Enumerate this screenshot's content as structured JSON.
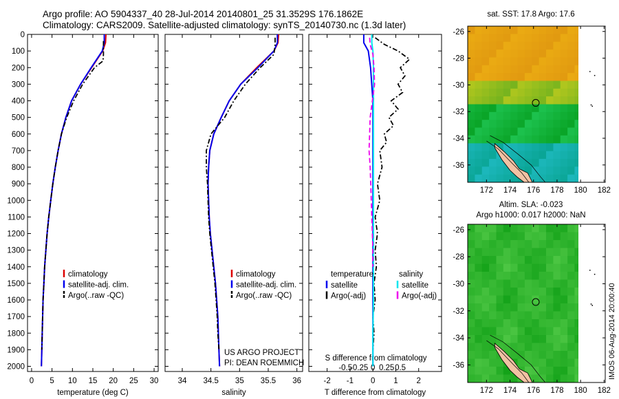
{
  "header": {
    "line1": "Argo profile: AO 5904337_40 28-Jul-2014 20140801_25 31.3529S 176.1862E",
    "line2": "Climatology: CARS2009. Satellite-adjusted climatology: synTS_20140730.nc (1.3d later)"
  },
  "colors": {
    "climatology": "#dd0000",
    "satellite": "#0000ee",
    "argo": "#000000",
    "salinity_satellite": "#00e5ee",
    "salinity_argo": "#ee00ee"
  },
  "credits": {
    "line1": "US ARGO PROJECT",
    "line2": "PI: DEAN ROEMMICH"
  },
  "side_stamp": "IMOS 06-Aug-2014 20:00:40",
  "chart_data": [
    {
      "type": "line",
      "xlabel": "temperature (deg C)",
      "ylabel": "",
      "xlim": [
        -1,
        31
      ],
      "xticks": [
        0,
        5,
        10,
        15,
        20,
        25,
        30
      ],
      "ylim": [
        2050,
        0
      ],
      "yticks": [
        0,
        100,
        200,
        300,
        400,
        500,
        600,
        700,
        800,
        900,
        1000,
        1100,
        1200,
        1300,
        1400,
        1500,
        1600,
        1700,
        1800,
        1900,
        2000
      ],
      "legend": [
        "climatology",
        "satellite-adj. clim.",
        "Argo(..raw -QC)"
      ],
      "series": [
        {
          "name": "climatology",
          "style": "solid",
          "color": "#dd0000",
          "x": [
            18.2,
            18.1,
            17.4,
            14.7,
            12.0,
            9.8,
            8.4,
            7.3,
            6.5,
            5.8,
            5.2,
            4.7,
            4.2,
            3.8,
            3.5,
            3.2,
            3.0,
            2.8,
            2.7,
            2.6,
            2.5,
            2.4
          ],
          "y": [
            0,
            50,
            100,
            200,
            300,
            400,
            500,
            600,
            700,
            800,
            900,
            1000,
            1100,
            1200,
            1300,
            1400,
            1500,
            1600,
            1700,
            1800,
            1900,
            2000
          ]
        },
        {
          "name": "satellite-adj. clim.",
          "style": "solid",
          "color": "#0000ee",
          "x": [
            17.8,
            17.8,
            17.3,
            14.6,
            12.0,
            9.8,
            8.4,
            7.3,
            6.5,
            5.8,
            5.2,
            4.7,
            4.2,
            3.8,
            3.5,
            3.2,
            3.0,
            2.8,
            2.7,
            2.6,
            2.5,
            2.4
          ],
          "y": [
            0,
            50,
            100,
            200,
            300,
            400,
            500,
            600,
            700,
            800,
            900,
            1000,
            1100,
            1200,
            1300,
            1400,
            1500,
            1600,
            1700,
            1800,
            1900,
            2000
          ]
        },
        {
          "name": "Argo(..raw -QC)",
          "style": "dashdot",
          "color": "#000000",
          "x": [
            17.6,
            17.6,
            17.6,
            17.5,
            15.4,
            12.5,
            10.3,
            8.6,
            7.3,
            6.5,
            5.8,
            5.2,
            4.7,
            4.2,
            3.8,
            3.5,
            3.2,
            3.0,
            2.8,
            2.7,
            2.6,
            2.5
          ],
          "y": [
            40,
            80,
            120,
            160,
            200,
            300,
            400,
            500,
            600,
            700,
            800,
            900,
            1000,
            1100,
            1200,
            1300,
            1400,
            1500,
            1600,
            1700,
            1800,
            1900
          ]
        }
      ]
    },
    {
      "type": "line",
      "xlabel": "salinity",
      "ylabel": "",
      "xlim": [
        33.7,
        36.1
      ],
      "xticks": [
        34,
        34.5,
        35,
        35.5,
        36
      ],
      "ylim": [
        2050,
        0
      ],
      "legend": [
        "climatology",
        "satellite-adj. clim.",
        "Argo(..raw -QC)"
      ],
      "series": [
        {
          "name": "climatology",
          "style": "solid",
          "color": "#dd0000",
          "x": [
            35.68,
            35.67,
            35.6,
            35.3,
            35.02,
            34.82,
            34.68,
            34.55,
            34.48,
            34.46,
            34.45,
            34.46,
            34.47,
            34.49,
            34.52,
            34.55,
            34.58,
            34.6,
            34.62,
            34.63,
            34.64,
            34.65
          ],
          "y": [
            0,
            50,
            100,
            200,
            300,
            400,
            500,
            600,
            700,
            800,
            900,
            1000,
            1100,
            1200,
            1300,
            1400,
            1500,
            1600,
            1700,
            1800,
            1900,
            2000
          ]
        },
        {
          "name": "satellite-adj. clim.",
          "style": "solid",
          "color": "#0000ee",
          "x": [
            35.66,
            35.66,
            35.6,
            35.32,
            35.02,
            34.82,
            34.68,
            34.55,
            34.48,
            34.46,
            34.45,
            34.46,
            34.47,
            34.49,
            34.52,
            34.55,
            34.58,
            34.6,
            34.62,
            34.63,
            34.64,
            34.65
          ],
          "y": [
            0,
            50,
            100,
            200,
            300,
            400,
            500,
            600,
            700,
            800,
            900,
            1000,
            1100,
            1200,
            1300,
            1400,
            1500,
            1600,
            1700,
            1800,
            1900,
            2000
          ]
        },
        {
          "name": "Argo(..raw -QC)",
          "style": "dashdot",
          "color": "#000000",
          "x": [
            35.62,
            35.62,
            35.6,
            35.36,
            35.1,
            34.9,
            34.74,
            34.5,
            34.42,
            34.42,
            34.44,
            34.45,
            34.46,
            34.48,
            34.51,
            34.54,
            34.57,
            34.59,
            34.61,
            34.62,
            34.64
          ],
          "y": [
            20,
            60,
            120,
            200,
            300,
            400,
            500,
            600,
            700,
            800,
            900,
            1000,
            1100,
            1200,
            1300,
            1400,
            1500,
            1600,
            1700,
            1800,
            1900
          ]
        }
      ]
    },
    {
      "type": "line",
      "xlabel": "T difference from climatology",
      "secondary_xlabel": "S difference from climatology",
      "ylabel": "",
      "xlim": [
        -2.8,
        3.0
      ],
      "xticks": [
        -2,
        -1,
        0,
        1,
        2
      ],
      "secondary_xticks": [
        -0.5,
        -0.25,
        0,
        0.25,
        0.5
      ],
      "ylim": [
        2050,
        0
      ],
      "legend_groups": [
        {
          "title": "temperature",
          "items": [
            "satellite",
            "Argo(-adj)"
          ]
        },
        {
          "title": "salinity",
          "items": [
            "satellite",
            "Argo(-adj)"
          ]
        }
      ],
      "series": [
        {
          "name": "satellite",
          "group": "temperature",
          "style": "solid",
          "color": "#0000ee",
          "x": [
            -0.4,
            -0.4,
            -0.2,
            -0.1,
            0,
            0,
            0,
            0,
            0,
            0,
            0,
            0,
            0
          ],
          "y": [
            0,
            50,
            100,
            200,
            400,
            600,
            800,
            1000,
            1200,
            1400,
            1600,
            1800,
            2000
          ]
        },
        {
          "name": "Argo(-adj)",
          "group": "temperature",
          "style": "dashdot",
          "color": "#000000",
          "x": [
            0.1,
            0.5,
            1.1,
            1.6,
            1.2,
            1.4,
            1.1,
            1.3,
            0.8,
            1.1,
            0.7,
            0.9,
            0.5,
            0.6,
            0.3,
            0.4,
            0.2,
            0.3,
            0.1,
            0.2,
            0.1,
            0.15,
            0.05,
            0.1,
            0.0,
            0.05,
            0.0
          ],
          "y": [
            20,
            60,
            100,
            150,
            200,
            250,
            300,
            350,
            400,
            450,
            500,
            550,
            600,
            650,
            700,
            800,
            900,
            1000,
            1100,
            1200,
            1300,
            1400,
            1500,
            1600,
            1700,
            1800,
            1900
          ]
        },
        {
          "name": "satellite",
          "group": "salinity",
          "style": "solid",
          "color": "#00e5ee",
          "x": [
            -0.02,
            -0.02,
            0.0,
            0.01,
            0.01,
            0.01,
            0.01,
            0.01,
            0.01,
            0.01,
            0.01,
            0.0,
            0.0
          ],
          "y": [
            0,
            50,
            100,
            200,
            400,
            600,
            800,
            1000,
            1200,
            1400,
            1600,
            1800,
            2000
          ]
        },
        {
          "name": "Argo(-adj)",
          "group": "salinity",
          "style": "dashed",
          "color": "#ee00ee",
          "x": [
            -0.06,
            -0.05,
            0.0,
            0.02,
            0.03,
            -0.01,
            -0.05,
            -0.06,
            -0.07,
            -0.05,
            -0.04,
            -0.03,
            -0.02,
            -0.01,
            0.0,
            0.0
          ],
          "y": [
            20,
            60,
            120,
            200,
            300,
            400,
            500,
            600,
            700,
            800,
            900,
            1000,
            1100,
            1200,
            1300,
            1400
          ]
        }
      ]
    },
    {
      "type": "heatmap",
      "title": "sat. SST: 17.8  Argo: 17.6",
      "xlim": [
        170.4,
        182.1
      ],
      "xticks": [
        172,
        174,
        176,
        178,
        180,
        182
      ],
      "ylim": [
        -37.3,
        -25.6
      ],
      "yticks": [
        -26,
        -28,
        -30,
        -32,
        -34,
        -36
      ],
      "field_extent": {
        "lon": [
          170.4,
          180.1
        ],
        "lat": [
          -37.3,
          -25.6
        ]
      },
      "argo_position": {
        "lon": 176.19,
        "lat": -31.35
      }
    },
    {
      "type": "heatmap",
      "title": "Altim. SLA: -0.023",
      "subtitle": "Argo h1000: 0.017 h2000: NaN",
      "xlim": [
        170.4,
        182.1
      ],
      "xticks": [
        172,
        174,
        176,
        178,
        180,
        182
      ],
      "ylim": [
        -37.3,
        -25.6
      ],
      "yticks": [
        -26,
        -28,
        -30,
        -32,
        -34,
        -36
      ],
      "field_extent": {
        "lon": [
          170.4,
          180.1
        ],
        "lat": [
          -37.3,
          -25.6
        ]
      },
      "argo_position": {
        "lon": 176.19,
        "lat": -31.35
      }
    }
  ]
}
